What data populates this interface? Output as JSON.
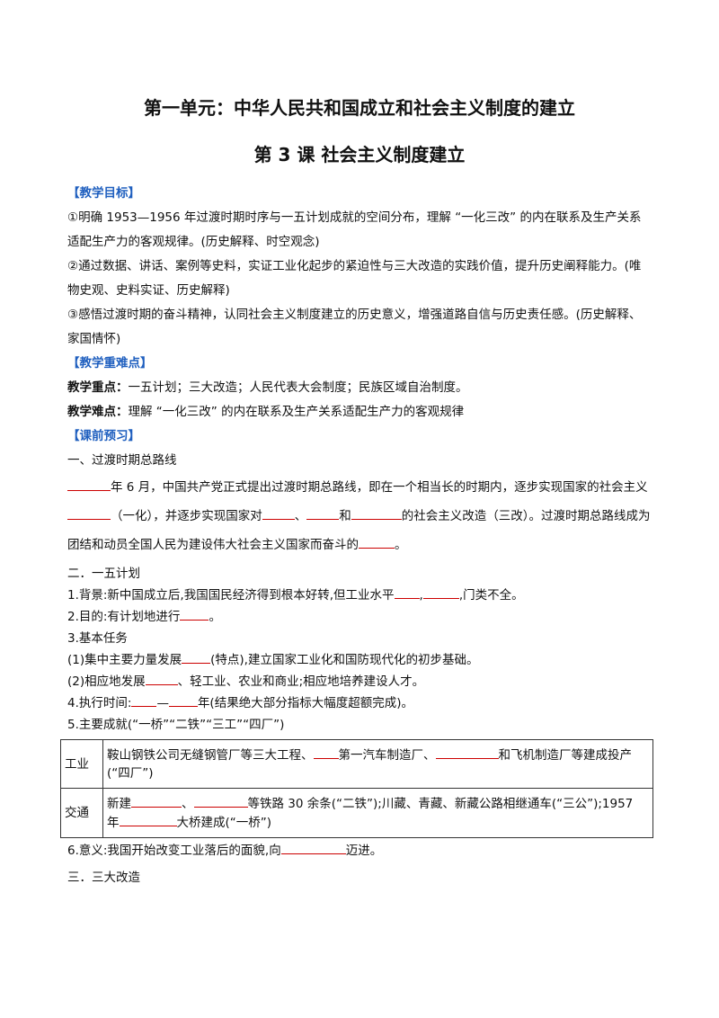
{
  "title": "第一单元：中华人民共和国成立和社会主义制度的建立",
  "subtitle": "第 3 课  社会主义制度建立",
  "objectives": {
    "heading": "【教学目标】",
    "items": [
      "①明确 1953—1956 年过渡时期时序与一五计划成就的空间分布，理解 “一化三改” 的内在联系及生产关系适配生产力的客观规律。(历史解释、时空观念)",
      "②通过数据、讲话、案例等史料，实证工业化起步的紧迫性与三大改造的实践价值，提升历史阐释能力。(唯物史观、史料实证、历史解释)",
      "③感悟过渡时期的奋斗精神，认同社会主义制度建立的历史意义，增强道路自信与历史责任感。(历史解释、家国情怀)"
    ]
  },
  "key_points": {
    "heading": "【教学重难点】",
    "focus_label": "教学重点：",
    "focus": "一五计划；三大改造；人民代表大会制度；民族区域自治制度。",
    "difficulty_label": "教学难点：",
    "difficulty": "理解 “一化三改” 的内在联系及生产关系适配生产力的客观规律"
  },
  "preview": {
    "heading": "【课前预习】",
    "section1": {
      "title": "一、过渡时期总路线",
      "parts": [
        "年 6 月，中国共产党正式提出过渡时期总路线，即在一个相当长的时期内，逐步实现国家的社会主义",
        "（一化），并逐步实现国家对",
        "、",
        "和",
        "的社会主义改造（三改）。过渡时期总路线成为团结和动员全国人民为建设伟大社会主义国家而奋斗的",
        "。"
      ]
    },
    "section2": {
      "title": "二．一五计划",
      "lines": [
        [
          "1.背景:新中国成立后,我国国民经济得到根本好转,但工业水平",
          ",",
          ",门类不全。"
        ],
        [
          "2.目的:有计划地进行",
          "。"
        ],
        [
          "3.基本任务"
        ],
        [
          "(1)集中主要力量发展",
          "(特点),建立国家工业化和国防现代化的初步基础。"
        ],
        [
          "(2)相应地发展",
          "、轻工业、农业和商业;相应地培养建设人才。"
        ],
        [
          "4.执行时间:",
          "—",
          "年(结果绝大部分指标大幅度超额完成)。"
        ],
        [
          "5.主要成就(“一桥”“二铁”“三工”“四厂”)"
        ]
      ],
      "table": [
        [
          "工业",
          [
            "鞍山钢铁公司无缝钢管厂等三大工程、",
            "第一汽车制造厂、",
            "和飞机制造厂等建成投产(“四厂”)"
          ]
        ],
        [
          "交通",
          [
            "新建",
            "、",
            "等铁路 30 余条(“二铁”);川藏、青藏、新藏公路相继通车(“三公”);1957 年",
            "大桥建成(“一桥”)"
          ]
        ]
      ],
      "significance": [
        "6.意义:我国开始改变工业落后的面貌,向",
        "迈进。"
      ]
    },
    "section3": {
      "title": "三．三大改造"
    }
  }
}
